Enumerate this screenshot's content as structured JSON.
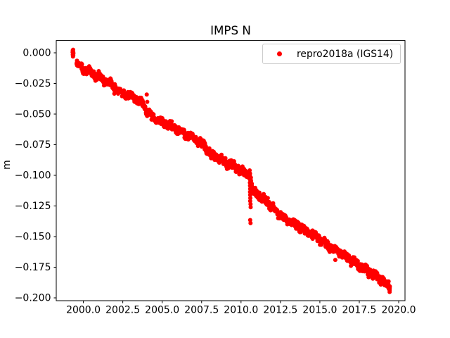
{
  "figure": {
    "title": "IMPS N",
    "ylabel": "m",
    "background_color": "#ffffff",
    "text_color": "#000000"
  },
  "legend": {
    "label": "repro2018a (IGS14)",
    "marker_color": "#ff0000",
    "border_color": "#cccccc",
    "position": "upper right"
  },
  "chart_data": {
    "type": "scatter",
    "title": "IMPS N",
    "xlabel": "",
    "ylabel": "m",
    "grid": false,
    "legend_position": "upper right",
    "xlim": [
      1998.28,
      2020.4
    ],
    "ylim": [
      -0.2023,
      0.01
    ],
    "x_ticks": [
      2000.0,
      2002.5,
      2005.0,
      2007.5,
      2010.0,
      2012.5,
      2015.0,
      2017.5,
      2020.0
    ],
    "x_tick_labels": [
      "2000.0",
      "2002.5",
      "2005.0",
      "2007.5",
      "2010.0",
      "2012.5",
      "2015.0",
      "2017.5",
      "2020.0"
    ],
    "y_ticks": [
      0.0,
      -0.025,
      -0.05,
      -0.075,
      -0.1,
      -0.125,
      -0.15,
      -0.175,
      -0.2
    ],
    "y_tick_labels": [
      "0.000",
      "−0.025",
      "−0.050",
      "−0.075",
      "−0.100",
      "−0.125",
      "−0.150",
      "−0.175",
      "−0.200"
    ],
    "series": [
      {
        "name": "repro2018a (IGS14)",
        "color": "#ff0000",
        "marker": "dot",
        "marker_px": 6,
        "noise_std_m": 0.0014,
        "sample_step_years": 0.02,
        "samples_per_step": 2,
        "trend_anchors": [
          [
            1999.58,
            -0.0095
          ],
          [
            2000.0,
            -0.0135
          ],
          [
            2000.6,
            -0.017
          ],
          [
            2001.2,
            -0.0215
          ],
          [
            2001.9,
            -0.027
          ],
          [
            2002.35,
            -0.032
          ],
          [
            2003.1,
            -0.0355
          ],
          [
            2003.7,
            -0.041
          ],
          [
            2004.25,
            -0.0515
          ],
          [
            2005.0,
            -0.0565
          ],
          [
            2005.6,
            -0.0605
          ],
          [
            2006.3,
            -0.065
          ],
          [
            2007.0,
            -0.0695
          ],
          [
            2007.6,
            -0.0745
          ],
          [
            2008.1,
            -0.083
          ],
          [
            2008.8,
            -0.0875
          ],
          [
            2009.5,
            -0.0925
          ],
          [
            2010.1,
            -0.0975
          ],
          [
            2010.55,
            -0.0995
          ],
          [
            2010.72,
            -0.1125
          ],
          [
            2011.3,
            -0.1175
          ],
          [
            2012.0,
            -0.126
          ],
          [
            2012.6,
            -0.1335
          ],
          [
            2013.2,
            -0.138
          ],
          [
            2014.0,
            -0.144
          ],
          [
            2014.8,
            -0.1505
          ],
          [
            2015.5,
            -0.157
          ],
          [
            2016.2,
            -0.1625
          ],
          [
            2017.0,
            -0.169
          ],
          [
            2017.7,
            -0.1755
          ],
          [
            2018.4,
            -0.181
          ],
          [
            2019.0,
            -0.1865
          ],
          [
            2019.45,
            -0.1915
          ]
        ],
        "initial_cluster": [
          [
            1999.32,
            0.0005
          ],
          [
            1999.33,
            -0.0015
          ],
          [
            1999.33,
            0.002
          ],
          [
            1999.34,
            -0.003
          ],
          [
            1999.34,
            0.001
          ],
          [
            1999.35,
            -0.001
          ],
          [
            1999.35,
            0.0025
          ],
          [
            1999.36,
            -0.002
          ],
          [
            1999.36,
            0.0005
          ],
          [
            1999.37,
            -0.0005
          ]
        ],
        "event_cluster_2010": [
          [
            2010.55,
            -0.096
          ],
          [
            2010.57,
            -0.0985
          ],
          [
            2010.56,
            -0.101
          ],
          [
            2010.58,
            -0.1035
          ],
          [
            2010.56,
            -0.106
          ],
          [
            2010.57,
            -0.1085
          ],
          [
            2010.58,
            -0.111
          ],
          [
            2010.57,
            -0.1135
          ],
          [
            2010.58,
            -0.116
          ],
          [
            2010.59,
            -0.1185
          ],
          [
            2010.58,
            -0.121
          ],
          [
            2010.6,
            -0.1235
          ],
          [
            2010.61,
            -0.126
          ],
          [
            2010.58,
            -0.1365
          ],
          [
            2010.6,
            -0.139
          ]
        ],
        "outliers": [
          [
            2004.02,
            -0.034
          ],
          [
            2004.05,
            -0.04
          ],
          [
            2015.98,
            -0.169
          ]
        ]
      }
    ]
  }
}
